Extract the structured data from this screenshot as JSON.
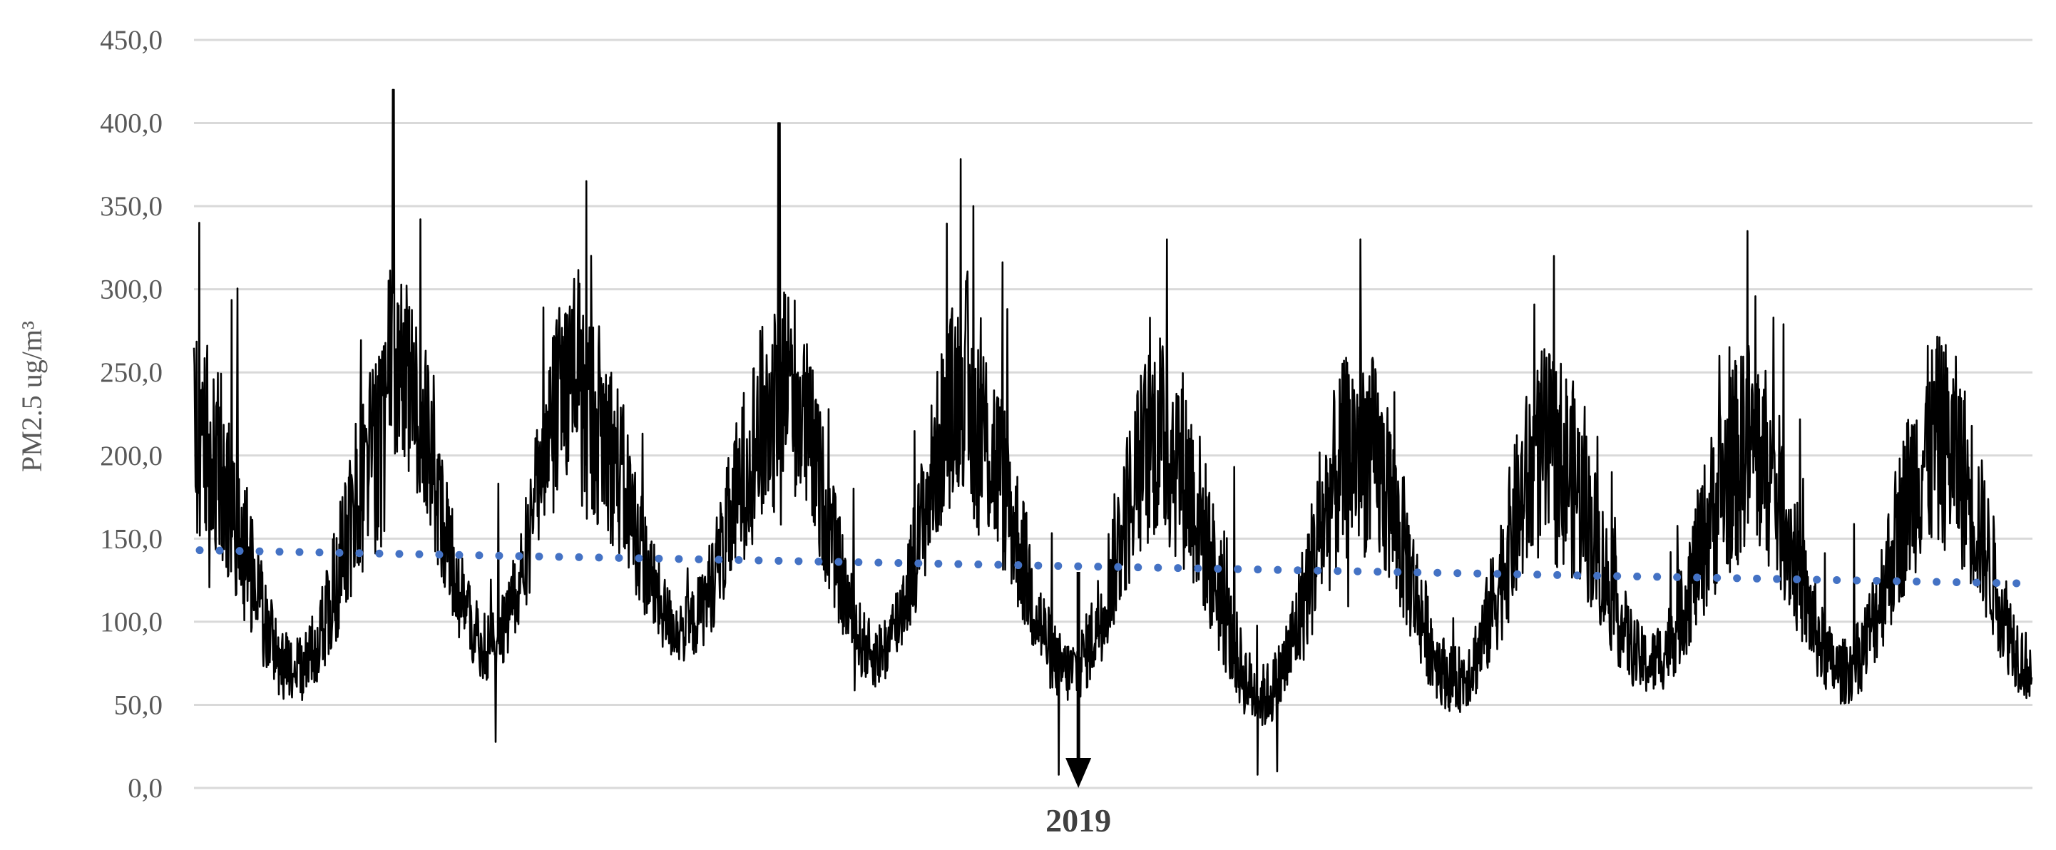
{
  "chart_data": {
    "type": "line",
    "title": "",
    "xlabel": "",
    "ylabel": "PM2.5 ug/m³",
    "ylim": [
      0,
      450
    ],
    "yticks": [
      "0,0",
      "50,0",
      "100,0",
      "150,0",
      "200,0",
      "250,0",
      "300,0",
      "350,0",
      "400,0",
      "450,0"
    ],
    "grid": true,
    "legend": "none",
    "years_shown": 9.5,
    "annotation": {
      "label": "2019",
      "year_position": 4.57,
      "arrow_from": 130,
      "arrow_to": 0
    },
    "seasonal_profile": {
      "points_per_year": 365,
      "year_starts_at": "early-season high",
      "peak": [
        {
          "year": 0,
          "winter_peak": 340,
          "summer_low": 30
        },
        {
          "year": 1,
          "winter_peak": 420,
          "summer_low": 45
        },
        {
          "year": 2,
          "winter_peak": 365,
          "summer_low": 55
        },
        {
          "year": 3,
          "winter_peak": 400,
          "summer_low": 40
        },
        {
          "year": 4,
          "winter_peak": 350,
          "summer_low": 30
        },
        {
          "year": 5,
          "winter_peak": 330,
          "summer_low": 15
        },
        {
          "year": 6,
          "winter_peak": 330,
          "summer_low": 25
        },
        {
          "year": 7,
          "winter_peak": 320,
          "summer_low": 35
        },
        {
          "year": 8,
          "winter_peak": 335,
          "summer_low": 30
        }
      ]
    },
    "series": [
      {
        "name": "",
        "style": "solid-black",
        "note": "daily PM2.5 series (generated from seasonal_profile)"
      },
      {
        "name": "",
        "style": "dotted-blue",
        "type": "linear-trend",
        "start": 143,
        "end": 123
      }
    ],
    "colors": {
      "series": "#000000",
      "trend": "#4472c4",
      "grid": "#d9d9d9",
      "ticks": "#595959"
    }
  }
}
